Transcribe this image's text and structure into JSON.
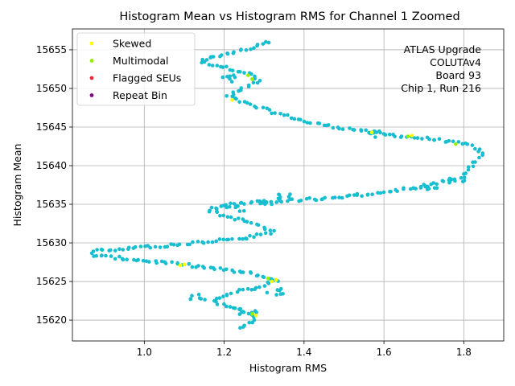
{
  "chart_data": {
    "type": "scatter",
    "title": "Histogram Mean vs Histogram RMS for Channel 1 Zoomed",
    "xlabel": "Histogram RMS",
    "ylabel": "Histogram Mean",
    "xlim": [
      0.82,
      1.9
    ],
    "ylim": [
      15617.3,
      15657.7
    ],
    "x_ticks": [
      "1.0",
      "1.2",
      "1.4",
      "1.6",
      "1.8"
    ],
    "x_tick_values": [
      1.0,
      1.2,
      1.4,
      1.6,
      1.8
    ],
    "y_ticks": [
      "15620",
      "15625",
      "15630",
      "15635",
      "15640",
      "15645",
      "15650",
      "15655"
    ],
    "y_tick_values": [
      15620,
      15625,
      15630,
      15635,
      15640,
      15645,
      15650,
      15655
    ],
    "grid": true,
    "legend_position": "upper-left",
    "colors": {
      "main": "#17becf",
      "skewed": "#ffff00",
      "multimodal": "#99ee00",
      "flagged": "#e8293a",
      "repeat": "#7a0a7a"
    },
    "legend": [
      {
        "label": "Skewed",
        "color": "#ffff00"
      },
      {
        "label": "Multimodal",
        "color": "#99ee00"
      },
      {
        "label": "Flagged SEUs",
        "color": "#e8293a"
      },
      {
        "label": "Repeat Bin",
        "color": "#7a0a7a"
      }
    ],
    "annotation": [
      "ATLAS Upgrade",
      "COLUTAv4",
      "Board 93",
      "Chip 1, Run 216"
    ],
    "path_anchors": [
      [
        1.31,
        15656.0
      ],
      [
        1.28,
        15655.4
      ],
      [
        1.22,
        15654.6
      ],
      [
        1.16,
        15654.0
      ],
      [
        1.14,
        15653.4
      ],
      [
        1.18,
        15653.0
      ],
      [
        1.26,
        15652.0
      ],
      [
        1.29,
        15651.0
      ],
      [
        1.24,
        15649.8
      ],
      [
        1.21,
        15649.0
      ],
      [
        1.26,
        15648.0
      ],
      [
        1.33,
        15646.8
      ],
      [
        1.42,
        15645.5
      ],
      [
        1.52,
        15644.7
      ],
      [
        1.63,
        15643.9
      ],
      [
        1.74,
        15643.3
      ],
      [
        1.82,
        15642.6
      ],
      [
        1.85,
        15641.5
      ],
      [
        1.82,
        15640.0
      ],
      [
        1.79,
        15638.5
      ],
      [
        1.7,
        15637.3
      ],
      [
        1.6,
        15636.5
      ],
      [
        1.44,
        15635.7
      ],
      [
        1.32,
        15635.4
      ],
      [
        1.21,
        15635.0
      ],
      [
        1.16,
        15634.3
      ],
      [
        1.2,
        15633.5
      ],
      [
        1.27,
        15632.6
      ],
      [
        1.32,
        15631.4
      ],
      [
        1.26,
        15630.7
      ],
      [
        1.14,
        15630.1
      ],
      [
        1.02,
        15629.5
      ],
      [
        0.88,
        15629.0
      ],
      [
        0.87,
        15628.4
      ],
      [
        0.96,
        15627.9
      ],
      [
        1.06,
        15627.4
      ],
      [
        1.17,
        15626.7
      ],
      [
        1.27,
        15626.0
      ],
      [
        1.33,
        15625.2
      ],
      [
        1.29,
        15624.3
      ],
      [
        1.22,
        15623.6
      ],
      [
        1.17,
        15622.6
      ],
      [
        1.21,
        15621.6
      ],
      [
        1.27,
        15620.9
      ],
      [
        1.28,
        15620.0
      ],
      [
        1.24,
        15619.0
      ]
    ],
    "cluster_anchors": [
      [
        1.3,
        15635.3
      ],
      [
        1.36,
        15635.9
      ],
      [
        1.23,
        15634.5
      ],
      [
        1.33,
        15623.7
      ],
      [
        1.14,
        15623.1
      ],
      [
        1.26,
        15621.2
      ],
      [
        1.71,
        15637.2
      ],
      [
        1.58,
        15644.1
      ],
      [
        1.78,
        15638.2
      ],
      [
        1.21,
        15651.3
      ]
    ],
    "series": [
      {
        "name": "Skewed",
        "x": [
          1.22,
          1.57,
          1.33,
          1.32,
          1.1,
          1.09,
          1.28,
          1.67
        ],
        "y": [
          15648.5,
          15644.3,
          15625.2,
          15625.0,
          15627.2,
          15627.1,
          15620.6,
          15643.9
        ]
      },
      {
        "name": "Multimodal",
        "x": [
          1.26,
          1.27,
          1.78,
          1.66,
          1.27,
          1.31
        ],
        "y": [
          15651.7,
          15651.2,
          15642.8,
          15643.8,
          15620.8,
          15625.4
        ]
      },
      {
        "name": "Flagged SEUs",
        "x": [],
        "y": []
      },
      {
        "name": "Repeat Bin",
        "x": [],
        "y": []
      }
    ]
  }
}
